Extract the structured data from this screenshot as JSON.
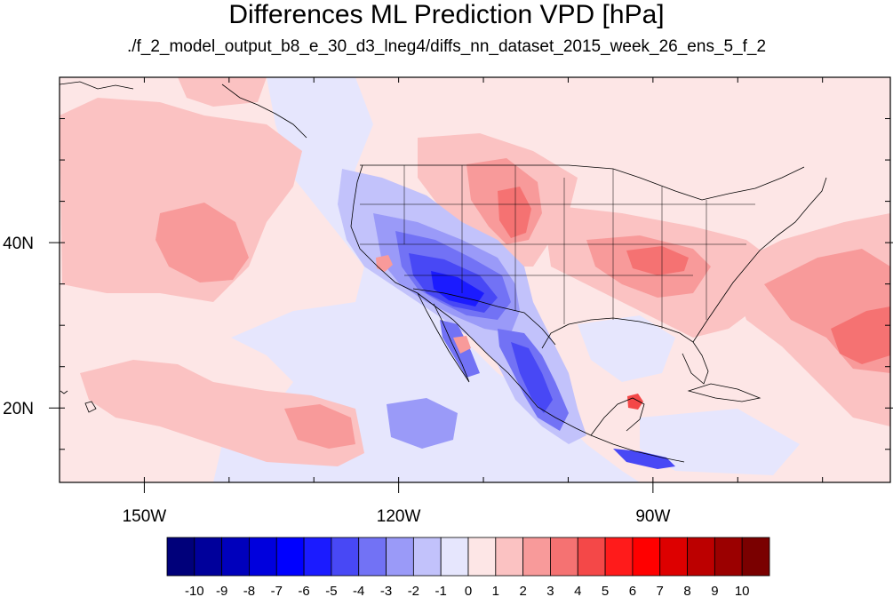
{
  "figure": {
    "title": "Differences ML Prediction VPD [hPa]",
    "subtitle": "./f_2_model_output_b8_e_30_d3_lneg4/diffs_nn_dataset_2015_week_26_ens_5_f_2"
  },
  "map": {
    "projection": "cylindrical-equidistant",
    "lon_range": [
      -160,
      -62
    ],
    "lat_range": [
      11,
      60
    ],
    "x_tick_labels": [
      {
        "lon": -150,
        "label": "150W"
      },
      {
        "lon": -120,
        "label": "120W"
      },
      {
        "lon": -90,
        "label": "90W"
      }
    ],
    "y_tick_labels": [
      {
        "lat": 40,
        "label": "40N"
      },
      {
        "lat": 20,
        "label": "20N"
      }
    ],
    "minor_lon_ticks": [
      -150,
      -140,
      -130,
      -120,
      -110,
      -100,
      -90,
      -80,
      -70
    ],
    "minor_lat_ticks": [
      15,
      20,
      25,
      30,
      35,
      40,
      45,
      50,
      55
    ],
    "features": [
      "coastlines",
      "us-state-borders",
      "national-borders"
    ],
    "field": {
      "variable": "VPD difference",
      "units": "hPa",
      "regions": [
        {
          "name": "Pacific northwest subtropical positive",
          "center": [
            -140,
            41
          ],
          "value": 2
        },
        {
          "name": "Pacific subtropical positive south",
          "center": [
            -138,
            22
          ],
          "value": 2
        },
        {
          "name": "Pacific east of Hawaii negative",
          "center": [
            -122,
            19
          ],
          "value": -2
        },
        {
          "name": "Great Plains positive",
          "center": [
            -103,
            42
          ],
          "value": 3
        },
        {
          "name": "Ohio Valley positive",
          "center": [
            -87,
            37
          ],
          "value": 3
        },
        {
          "name": "Southwest US negative core",
          "center": [
            -113,
            34
          ],
          "value": -6
        },
        {
          "name": "Sierra Madre Occidental negative",
          "center": [
            -106,
            25
          ],
          "value": -5
        },
        {
          "name": "Baja California negative",
          "center": [
            -112,
            28
          ],
          "value": -4
        },
        {
          "name": "Northeast Atlantic positive",
          "center": [
            -73,
            36
          ],
          "value": 3
        },
        {
          "name": "Western Atlantic positive",
          "center": [
            -64,
            30
          ],
          "value": 3
        },
        {
          "name": "Caribbean positive spot",
          "center": [
            -90,
            20
          ],
          "value": 5
        },
        {
          "name": "Central America negative strip",
          "center": [
            -90,
            14
          ],
          "value": -4
        }
      ]
    }
  },
  "colorbar": {
    "tick_labels": [
      "-10",
      "-9",
      "-8",
      "-7",
      "-6",
      "-5",
      "-4",
      "-3",
      "-2",
      "-1",
      "0",
      "1",
      "2",
      "3",
      "4",
      "5",
      "6",
      "7",
      "8",
      "9",
      "10"
    ],
    "colors": [
      "#00007a",
      "#00009b",
      "#0000bc",
      "#0000dd",
      "#0000ff",
      "#1b1bff",
      "#4848f5",
      "#7272f5",
      "#9a9af8",
      "#c2c2fb",
      "#e6e6fd",
      "#fde6e6",
      "#fbc2c2",
      "#f89a9a",
      "#f57272",
      "#f44848",
      "#ff1b1b",
      "#ff0000",
      "#dd0000",
      "#bc0000",
      "#9b0000",
      "#7a0000"
    ]
  }
}
